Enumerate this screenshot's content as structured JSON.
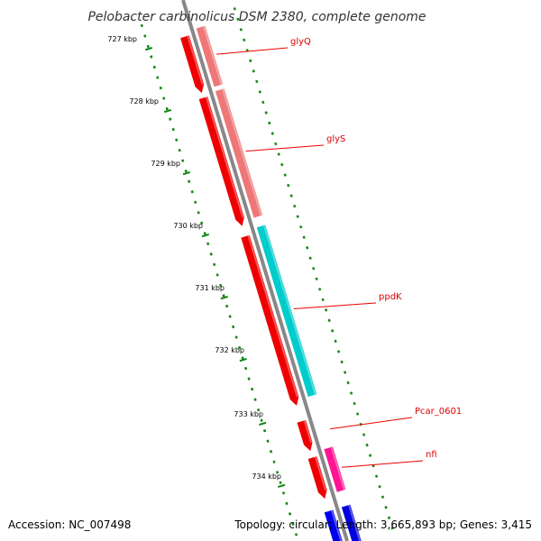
{
  "title": "Pelobacter carbinolicus DSM 2380, complete genome",
  "footer": {
    "accession": "Accession: NC_007498",
    "summary": "Topology: circular; Length: 3,665,893 bp; Genes: 3,415"
  },
  "ruler": {
    "labels": [
      "727 kbp",
      "728 kbp",
      "729 kbp",
      "730 kbp",
      "731 kbp",
      "732 kbp",
      "733 kbp",
      "734 kbp"
    ]
  },
  "genes": [
    {
      "label": "",
      "strand": "fwd",
      "color": "#ff33aa",
      "start": -0.07,
      "end": -0.01,
      "arrow": false
    },
    {
      "label": "",
      "strand": "rev",
      "color": "#ee0000",
      "start": -0.07,
      "end": -0.01,
      "arrow": false
    },
    {
      "label": "glyQ",
      "strand": "fwd",
      "color": "#ee7777",
      "start": 0.055,
      "end": 0.163,
      "arrow": false
    },
    {
      "label": "",
      "strand": "rev",
      "color": "#ee0000",
      "start": 0.063,
      "end": 0.167,
      "arrow": true
    },
    {
      "label": "glyS",
      "strand": "fwd",
      "color": "#ee7777",
      "start": 0.171,
      "end": 0.405,
      "arrow": false
    },
    {
      "label": "",
      "strand": "rev",
      "color": "#ee0000",
      "start": 0.176,
      "end": 0.413,
      "arrow": true
    },
    {
      "label": "ppdK",
      "strand": "fwd",
      "color": "#00cccc",
      "start": 0.423,
      "end": 0.736,
      "arrow": false
    },
    {
      "label": "",
      "strand": "rev",
      "color": "#ee0000",
      "start": 0.432,
      "end": 0.745,
      "arrow": true
    },
    {
      "label": "Pcar_0601",
      "strand": "rev",
      "color": "#ee0000",
      "start": 0.774,
      "end": 0.829,
      "arrow": true
    },
    {
      "label": "nfi",
      "strand": "fwd",
      "color": "#ff1493",
      "start": 0.833,
      "end": 0.912,
      "arrow": false
    },
    {
      "label": "",
      "strand": "rev",
      "color": "#ee0000",
      "start": 0.841,
      "end": 0.917,
      "arrow": true
    },
    {
      "label": "",
      "strand": "fwd",
      "color": "#0000dd",
      "start": 0.94,
      "end": 1.02,
      "arrow": false
    },
    {
      "label": "",
      "strand": "rev",
      "color": "#0000ee",
      "start": 0.94,
      "end": 1.02,
      "arrow": false
    }
  ],
  "colors": {
    "backbone": "#888888",
    "ruler_ticks": "#118811",
    "label_text": "#dd0000",
    "label_line": "#ee0000"
  }
}
